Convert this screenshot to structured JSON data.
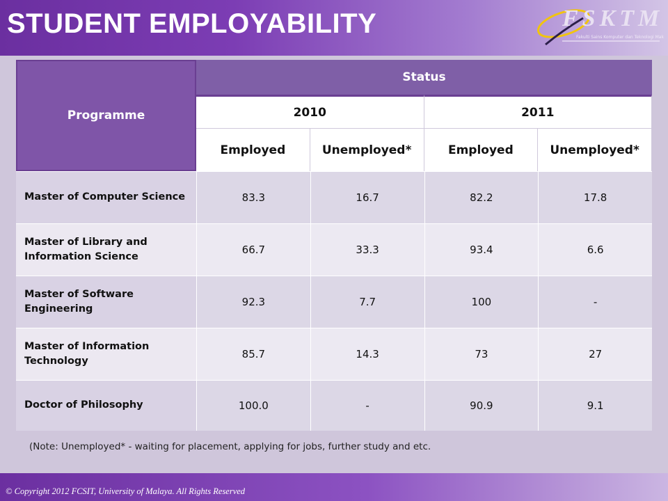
{
  "header": {
    "title": "STUDENT EMPLOYABILITY",
    "logo_text": "FSKTM",
    "logo_subtitle": "Fakulti Sains Komputer dan Teknologi Maklumat"
  },
  "table": {
    "programme_header": "Programme",
    "status_header": "Status",
    "years": [
      "2010",
      "2011"
    ],
    "subheaders": [
      "Employed",
      "Unemployed*",
      "Employed",
      "Unemployed*"
    ],
    "rows": [
      {
        "programme": "Master of Computer Science",
        "values": [
          "83.3",
          "16.7",
          "82.2",
          "17.8"
        ]
      },
      {
        "programme": "Master of Library and Information Science",
        "values": [
          "66.7",
          "33.3",
          "93.4",
          "6.6"
        ]
      },
      {
        "programme": "Master of Software Engineering",
        "values": [
          "92.3",
          "7.7",
          "100",
          "-"
        ]
      },
      {
        "programme": "Master of Information Technology",
        "values": [
          "85.7",
          "14.3",
          "73",
          "27"
        ]
      },
      {
        "programme": "Doctor of Philosophy",
        "values": [
          "100.0",
          "-",
          "90.9",
          "9.1"
        ]
      }
    ]
  },
  "note": "(Note: Unemployed* - waiting for placement, applying for jobs, further study and etc.",
  "footer": {
    "copyright": "© Copyright 2012 FCSIT, University of Malaya. All Rights Reserved"
  },
  "colors": {
    "header_purple": "#6b2fa0",
    "table_header": "#7f55a8",
    "row_dark": "#dcd7e6",
    "row_light": "#ece9f2"
  }
}
